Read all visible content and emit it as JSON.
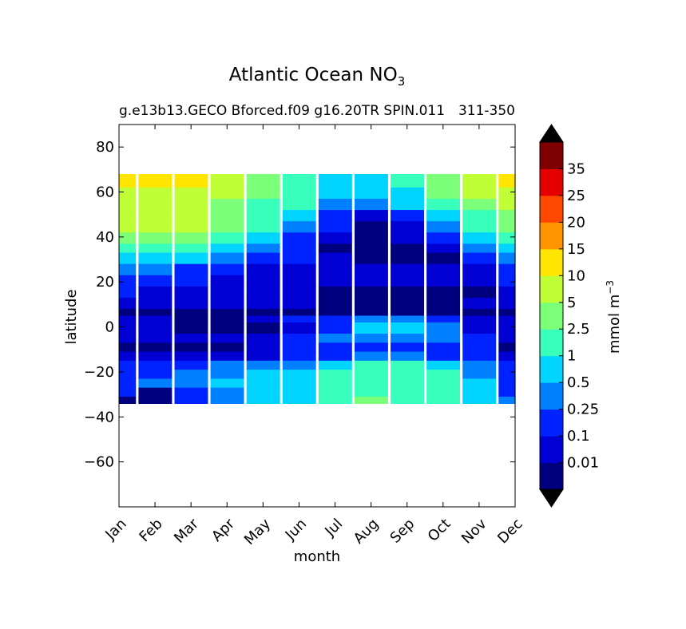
{
  "chart_data": {
    "type": "contourf",
    "title": "Atlantic Ocean NO",
    "title_subscript": "3",
    "subtitle_left": "g.e13b13.GECO Bforced.f09 g16.20TR SPIN.011",
    "subtitle_right": "311-350",
    "xlabel": "month",
    "ylabel": "latitude",
    "x_ticks": [
      "Jan",
      "Feb",
      "Mar",
      "Apr",
      "May",
      "Jun",
      "Jul",
      "Aug",
      "Sep",
      "Oct",
      "Nov",
      "Dec"
    ],
    "xlim": [
      0,
      11
    ],
    "ylim": [
      -80,
      90
    ],
    "y_ticks": [
      {
        "value": 80,
        "label": "80"
      },
      {
        "value": 60,
        "label": "60"
      },
      {
        "value": 40,
        "label": "40"
      },
      {
        "value": 20,
        "label": "20"
      },
      {
        "value": 0,
        "label": "0"
      },
      {
        "value": -20,
        "label": "−20"
      },
      {
        "value": -40,
        "label": "−40"
      },
      {
        "value": -60,
        "label": "−60"
      }
    ],
    "data_lat_range": [
      -34,
      68
    ],
    "levels": [
      0,
      0.01,
      0.1,
      0.25,
      0.5,
      1,
      2.5,
      5,
      10,
      15,
      20,
      25,
      35
    ],
    "level_labels": [
      "0.01",
      "0.1",
      "0.25",
      "0.5",
      "1",
      "2.5",
      "5",
      "10",
      "15",
      "20",
      "25",
      "35"
    ],
    "colorbar_colors": [
      "#00007f",
      "#0000d5",
      "#0022ff",
      "#0080ff",
      "#00d4ff",
      "#39ffbd",
      "#7cff79",
      "#c0ff36",
      "#ffe500",
      "#ff9400",
      "#ff4800",
      "#e50000",
      "#7f0000"
    ],
    "colorbar_label": "mmol m",
    "colorbar_label_exp": "−3",
    "extend": "both",
    "extend_color": "#000000",
    "latitude_bands": [
      {
        "lat": [
          62,
          68
        ],
        "values": [
          10,
          12,
          11,
          7,
          4,
          1.5,
          0.7,
          0.6,
          1,
          3,
          7,
          12
        ]
      },
      {
        "lat": [
          57,
          62
        ],
        "values": [
          8,
          8,
          7,
          5,
          3,
          1.2,
          0.6,
          0.5,
          0.8,
          2.5,
          5,
          8
        ]
      },
      {
        "lat": [
          52,
          57
        ],
        "values": [
          6,
          6,
          6,
          4,
          2,
          1,
          0.4,
          0.3,
          0.5,
          1.5,
          3.5,
          5
        ]
      },
      {
        "lat": [
          47,
          52
        ],
        "values": [
          6,
          6,
          5,
          3,
          1.5,
          0.6,
          0.2,
          0.08,
          0.15,
          0.6,
          2,
          4
        ]
      },
      {
        "lat": [
          42,
          47
        ],
        "values": [
          6,
          6,
          5,
          2.5,
          1,
          0.4,
          0.1,
          0.008,
          0.05,
          0.3,
          1,
          2.5
        ]
      },
      {
        "lat": [
          37,
          42
        ],
        "values": [
          4,
          4,
          3,
          1.5,
          0.6,
          0.2,
          0.05,
          0,
          0.02,
          0.2,
          0.6,
          1.5
        ]
      },
      {
        "lat": [
          33,
          37
        ],
        "values": [
          1.5,
          1.5,
          1,
          0.6,
          0.3,
          0.1,
          0.008,
          0,
          0,
          0.05,
          0.3,
          0.8
        ]
      },
      {
        "lat": [
          28,
          33
        ],
        "values": [
          0.6,
          0.6,
          0.5,
          0.3,
          0.2,
          0.1,
          0.05,
          0,
          0,
          0,
          0.1,
          0.3
        ]
      },
      {
        "lat": [
          23,
          28
        ],
        "values": [
          0.3,
          0.3,
          0.2,
          0.15,
          0.08,
          0.05,
          0.05,
          0.05,
          0.05,
          0.05,
          0.05,
          0.15
        ]
      },
      {
        "lat": [
          18,
          23
        ],
        "values": [
          0.2,
          0.2,
          0.15,
          0.08,
          0.05,
          0.05,
          0.05,
          0.05,
          0.05,
          0.05,
          0.05,
          0.1
        ]
      },
      {
        "lat": [
          13,
          18
        ],
        "values": [
          0.1,
          0.08,
          0.06,
          0.05,
          0.05,
          0.05,
          0.008,
          0,
          0,
          0,
          0.005,
          0.06
        ]
      },
      {
        "lat": [
          8,
          13
        ],
        "values": [
          0.05,
          0.05,
          0.05,
          0.05,
          0.05,
          0.05,
          0,
          0,
          0,
          0,
          0.05,
          0.05
        ]
      },
      {
        "lat": [
          5,
          8
        ],
        "values": [
          0.008,
          0.008,
          0,
          0,
          0,
          0,
          0,
          0,
          0,
          0,
          0,
          0
        ]
      },
      {
        "lat": [
          2,
          5
        ],
        "values": [
          0.05,
          0.05,
          0.008,
          0.008,
          0.05,
          0.1,
          0.2,
          0.3,
          0.3,
          0.2,
          0.05,
          0.05
        ]
      },
      {
        "lat": [
          -3,
          2
        ],
        "values": [
          0.05,
          0.05,
          0.008,
          0.008,
          0,
          0.08,
          0.2,
          0.6,
          0.7,
          0.4,
          0.08,
          0.05
        ]
      },
      {
        "lat": [
          -7,
          -3
        ],
        "values": [
          0.05,
          0.05,
          0.05,
          0.05,
          0.05,
          0.15,
          0.3,
          0.4,
          0.4,
          0.3,
          0.15,
          0.05
        ]
      },
      {
        "lat": [
          -11,
          -7
        ],
        "values": [
          0,
          0,
          0,
          0.008,
          0.05,
          0.1,
          0.15,
          0.2,
          0.2,
          0.15,
          0.1,
          0
        ]
      },
      {
        "lat": [
          -15,
          -11
        ],
        "values": [
          0.05,
          0.05,
          0.05,
          0.05,
          0.08,
          0.15,
          0.2,
          0.3,
          0.3,
          0.2,
          0.15,
          0.08
        ]
      },
      {
        "lat": [
          -19,
          -15
        ],
        "values": [
          0.1,
          0.15,
          0.2,
          0.3,
          0.4,
          0.4,
          0.8,
          1.2,
          1.2,
          0.8,
          0.3,
          0.15
        ]
      },
      {
        "lat": [
          -23,
          -19
        ],
        "values": [
          0.15,
          0.2,
          0.3,
          0.4,
          0.6,
          0.7,
          1.2,
          1.5,
          1.5,
          1.2,
          0.4,
          0.2
        ]
      },
      {
        "lat": [
          -27,
          -23
        ],
        "values": [
          0.2,
          0.3,
          0.4,
          0.6,
          0.7,
          0.8,
          1.5,
          1.8,
          1.8,
          1.5,
          0.6,
          0.2
        ]
      },
      {
        "lat": [
          -31,
          -27
        ],
        "values": [
          0.1,
          0.008,
          0.15,
          0.3,
          0.6,
          0.8,
          1.5,
          1.8,
          1.8,
          1.5,
          0.6,
          0.15
        ]
      },
      {
        "lat": [
          -34,
          -31
        ],
        "values": [
          0,
          0.008,
          0.2,
          0.4,
          0.7,
          0.9,
          1.6,
          2.6,
          2.0,
          1.6,
          0.7,
          0.3
        ]
      }
    ]
  }
}
